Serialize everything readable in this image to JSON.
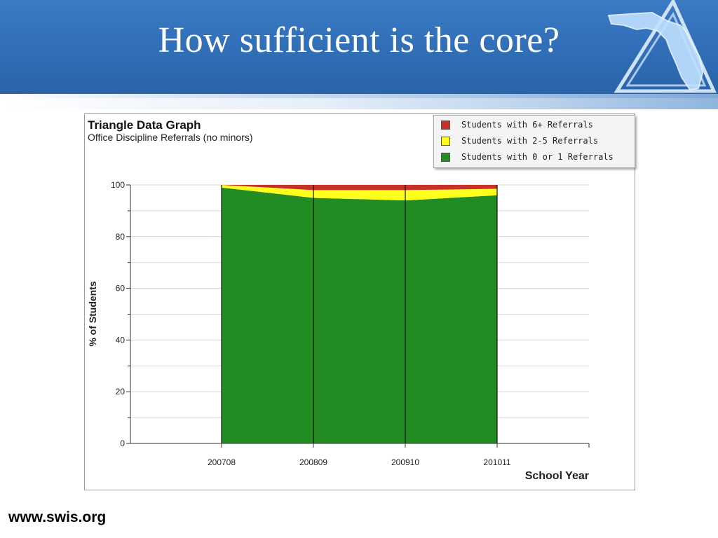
{
  "slide": {
    "title": "How sufficient is the core?",
    "footer_url": "www.swis.org"
  },
  "colors": {
    "header_blue": "#2f6db5",
    "red": "#c8302a",
    "yellow": "#ffff1e",
    "green": "#228b22"
  },
  "legend": [
    {
      "label": "Students with 6+ Referrals",
      "color": "#c8302a"
    },
    {
      "label": "Students with 2-5 Referrals",
      "color": "#ffff1e"
    },
    {
      "label": "Students with 0 or 1 Referrals",
      "color": "#228b22"
    }
  ],
  "chart_data": {
    "type": "area",
    "title": "Triangle Data Graph",
    "subtitle": "Office Discipline Referrals (no minors)",
    "xlabel": "School Year",
    "ylabel": "% of Students",
    "categories": [
      "200708",
      "200809",
      "200910",
      "201011"
    ],
    "ylim": [
      0,
      100
    ],
    "yticks": [
      0,
      20,
      40,
      60,
      80,
      100
    ],
    "grid": true,
    "legend_position": "top-right",
    "stacked": true,
    "series": [
      {
        "name": "Students with 0 or 1 Referrals",
        "values": [
          99,
          95,
          94,
          96
        ],
        "color": "#228b22"
      },
      {
        "name": "Students with 2-5 Referrals",
        "values": [
          1,
          3,
          4,
          2.5
        ],
        "color": "#ffff1e"
      },
      {
        "name": "Students with 6+ Referrals",
        "values": [
          0,
          2,
          2,
          1.5
        ],
        "color": "#c8302a"
      }
    ]
  }
}
